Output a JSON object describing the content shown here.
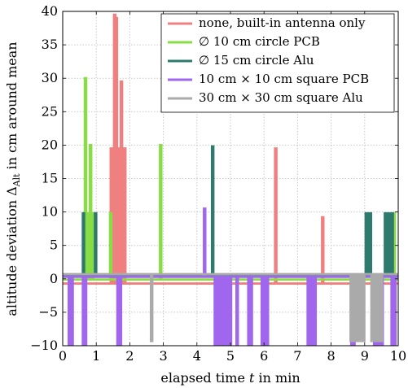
{
  "chart_data": {
    "type": "line",
    "xlabel": "elapsed time t in min",
    "ylabel": "altitude deviation ΔAlt in cm around mean",
    "xlim": [
      0,
      10
    ],
    "ylim": [
      -10,
      40
    ],
    "x_ticks": [
      "0",
      "1",
      "2",
      "3",
      "4",
      "5",
      "6",
      "7",
      "8",
      "9",
      "10"
    ],
    "y_ticks": [
      "−10",
      "−5",
      "0",
      "5",
      "10",
      "15",
      "20",
      "25",
      "30",
      "35",
      "40"
    ],
    "grid": true,
    "legend_position": "top-right",
    "series": [
      {
        "name": "none, built-in antenna only",
        "color": "#f08080",
        "baseline": -0.7,
        "spikes": [
          [
            1.45,
            19.5
          ],
          [
            1.5,
            19.5
          ],
          [
            1.55,
            39.5
          ],
          [
            1.6,
            39.0
          ],
          [
            1.65,
            19.5
          ],
          [
            1.7,
            9.2
          ],
          [
            1.75,
            29.5
          ],
          [
            1.8,
            19.5
          ],
          [
            1.85,
            19.5
          ],
          [
            6.35,
            19.5
          ],
          [
            7.75,
            9.2
          ]
        ]
      },
      {
        "name": "∅ 10 cm circle PCB",
        "color": "#88dd44",
        "baseline": -0.1,
        "spikes": [
          [
            0.68,
            30.0
          ],
          [
            0.72,
            9.8
          ],
          [
            0.78,
            9.8
          ],
          [
            0.83,
            20.0
          ],
          [
            0.9,
            9.8
          ],
          [
            1.43,
            9.8
          ],
          [
            2.92,
            20.0
          ],
          [
            9.88,
            9.8
          ]
        ]
      },
      {
        "name": "∅ 15 cm circle Alu",
        "color": "#2e7b6e",
        "baseline": 0.5,
        "spikes": [
          [
            0.62,
            9.8
          ],
          [
            0.98,
            9.8
          ],
          [
            4.47,
            19.8
          ],
          [
            9.05,
            9.8
          ],
          [
            9.12,
            9.8
          ],
          [
            9.17,
            9.8
          ],
          [
            9.62,
            9.8
          ],
          [
            9.68,
            9.8
          ],
          [
            9.75,
            9.8
          ],
          [
            9.82,
            9.8
          ]
        ]
      },
      {
        "name": "10 cm × 10 cm square PCB",
        "color": "#a066ee",
        "baseline": 0.3,
        "spikes": [
          [
            0.2,
            -9.8
          ],
          [
            0.28,
            -9.8
          ],
          [
            0.62,
            -9.8
          ],
          [
            0.68,
            -9.8
          ],
          [
            1.65,
            -9.8
          ],
          [
            1.72,
            -9.8
          ],
          [
            4.23,
            10.5
          ],
          [
            4.55,
            -9.8
          ],
          [
            4.62,
            -9.8
          ],
          [
            4.7,
            -9.8
          ],
          [
            4.78,
            -9.8
          ],
          [
            4.85,
            -9.8
          ],
          [
            4.93,
            -9.8
          ],
          [
            5.0,
            -9.8
          ],
          [
            5.2,
            -9.8
          ],
          [
            5.55,
            -9.8
          ],
          [
            5.62,
            -9.8
          ],
          [
            5.95,
            -9.8
          ],
          [
            6.02,
            -9.8
          ],
          [
            6.1,
            -9.8
          ],
          [
            7.32,
            -9.8
          ],
          [
            7.38,
            -9.8
          ],
          [
            7.45,
            -9.8
          ],
          [
            7.52,
            -9.8
          ],
          [
            8.62,
            -9.8
          ],
          [
            8.68,
            -9.8
          ],
          [
            9.3,
            -9.8
          ],
          [
            9.37,
            -9.8
          ],
          [
            9.45,
            -9.8
          ],
          [
            9.52,
            -9.8
          ],
          [
            9.82,
            -9.8
          ],
          [
            9.9,
            -9.8
          ]
        ]
      },
      {
        "name": "30 cm × 30 cm square Alu",
        "color": "#aaaaaa",
        "baseline": 0.7,
        "spikes": [
          [
            2.65,
            -9.3
          ],
          [
            8.6,
            -9.3
          ],
          [
            8.68,
            -9.3
          ],
          [
            8.75,
            -9.3
          ],
          [
            8.82,
            -9.3
          ],
          [
            8.9,
            -9.3
          ],
          [
            8.97,
            -9.3
          ],
          [
            9.22,
            -9.3
          ],
          [
            9.3,
            -9.3
          ],
          [
            9.37,
            -9.3
          ],
          [
            9.45,
            -9.3
          ],
          [
            9.5,
            -9.3
          ]
        ]
      }
    ]
  }
}
